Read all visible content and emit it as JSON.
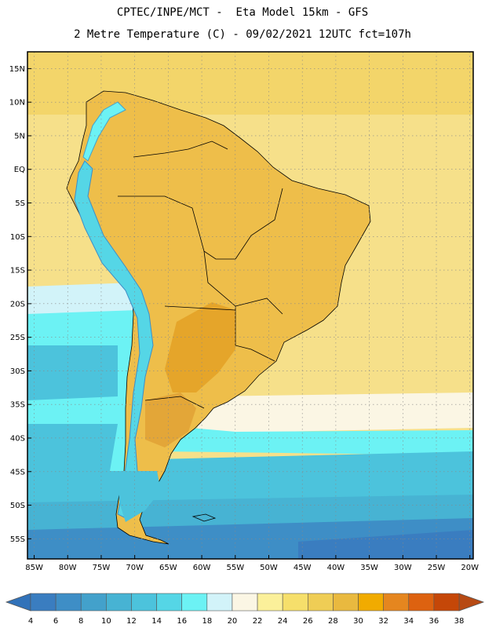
{
  "header": {
    "line1": "CPTEC/INPE/MCT -  Eta Model 15km - GFS",
    "line2": "2 Metre Temperature (C) - 09/02/2021 12UTC fct=107h"
  },
  "map": {
    "lat_labels": [
      "15N",
      "10N",
      "5N",
      "EQ",
      "5S",
      "10S",
      "15S",
      "20S",
      "25S",
      "30S",
      "35S",
      "40S",
      "45S",
      "50S",
      "55S"
    ],
    "lat_values": [
      15,
      10,
      5,
      0,
      -5,
      -10,
      -15,
      -20,
      -25,
      -30,
      -35,
      -40,
      -45,
      -50,
      -55
    ],
    "lon_labels": [
      "85W",
      "80W",
      "75W",
      "70W",
      "65W",
      "60W",
      "55W",
      "50W",
      "45W",
      "40W",
      "35W",
      "30W",
      "25W",
      "20W"
    ],
    "lon_values": [
      -85,
      -80,
      -75,
      -70,
      -65,
      -60,
      -55,
      -50,
      -45,
      -40,
      -35,
      -30,
      -25,
      -20
    ],
    "lon_range": [
      -86,
      -19.5
    ],
    "lat_range": [
      -58,
      17.5
    ],
    "ocean_color": "#f6e08a",
    "land_color": "#eebe4a"
  },
  "colorbar": {
    "ticks": [
      "4",
      "6",
      "8",
      "10",
      "12",
      "14",
      "16",
      "18",
      "20",
      "22",
      "24",
      "26",
      "28",
      "30",
      "32",
      "34",
      "36",
      "38"
    ],
    "colors": [
      "#3a7dc0",
      "#3e8ec6",
      "#43a1cb",
      "#47b3d3",
      "#4cc3dc",
      "#55d6e6",
      "#6cf2f4",
      "#d2f3f9",
      "#fbf6e4",
      "#fbf09a",
      "#f6df6b",
      "#efcd55",
      "#e9b93f",
      "#f1ab00",
      "#e5861f",
      "#dd6210",
      "#c54708"
    ],
    "low_color": "#3172b9",
    "high_color": "#b74a14"
  }
}
